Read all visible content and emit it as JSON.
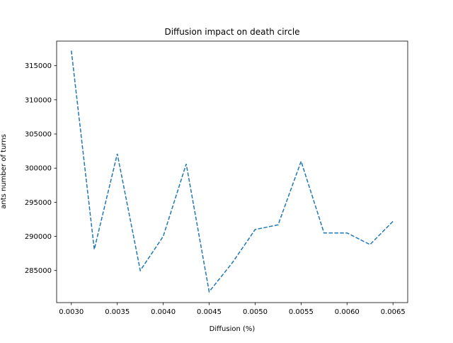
{
  "chart_data": {
    "type": "line",
    "title": "Diffusion impact on death circle",
    "xlabel": "Diffusion (%)",
    "ylabel": "ants number of turns",
    "xlim": [
      0.00284,
      0.00666
    ],
    "ylim": [
      280300,
      318600
    ],
    "xticks": [
      0.003,
      0.0035,
      0.004,
      0.0045,
      0.005,
      0.0055,
      0.006,
      0.0065
    ],
    "xtick_labels": [
      "0.0030",
      "0.0035",
      "0.0040",
      "0.0045",
      "0.0050",
      "0.0055",
      "0.0060",
      "0.0065"
    ],
    "yticks": [
      285000,
      290000,
      295000,
      300000,
      305000,
      310000,
      315000
    ],
    "ytick_labels": [
      "285000",
      "290000",
      "295000",
      "300000",
      "305000",
      "310000",
      "315000"
    ],
    "grid": false,
    "series": [
      {
        "color": "#1f77b4",
        "style": "dashed",
        "x": [
          0.003,
          0.00325,
          0.0035,
          0.00375,
          0.004,
          0.00425,
          0.0045,
          0.00475,
          0.005,
          0.00525,
          0.0055,
          0.00575,
          0.006,
          0.00625,
          0.0065
        ],
        "y": [
          317200,
          288100,
          302100,
          285000,
          290000,
          300600,
          281900,
          286100,
          291000,
          291700,
          301000,
          290500,
          290500,
          288800,
          292200
        ]
      }
    ]
  }
}
